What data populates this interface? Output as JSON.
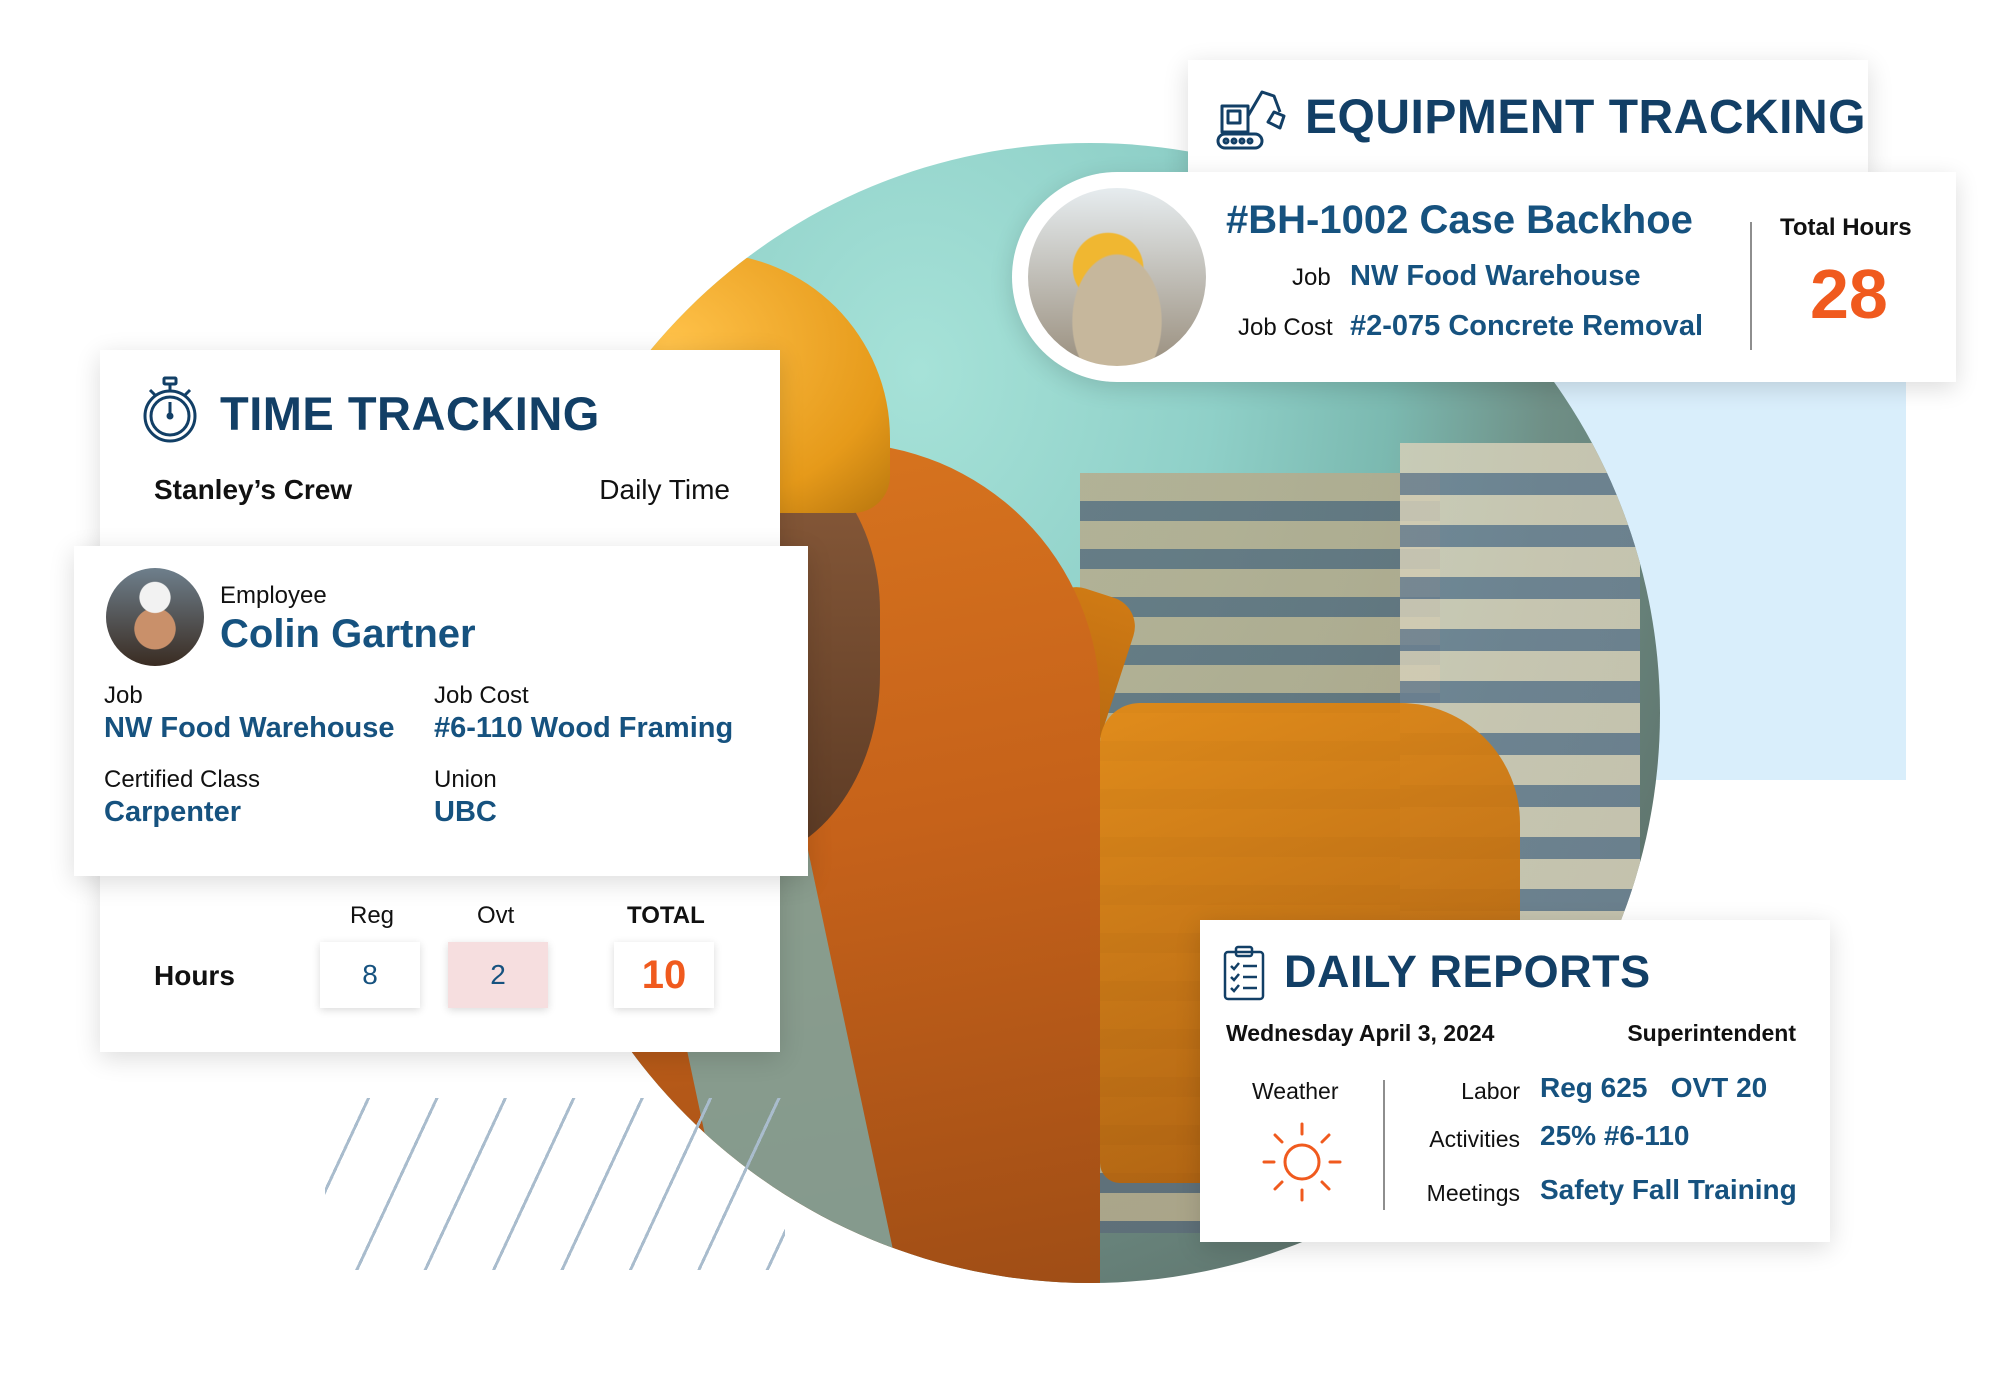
{
  "colors": {
    "heading": "#123f66",
    "value": "#16527f",
    "accent": "#f05a1e",
    "overtime_bg": "#f6dedf"
  },
  "time_tracking": {
    "title": "TIME TRACKING",
    "icon": "stopwatch-icon",
    "crew": "Stanley’s Crew",
    "mode": "Daily Time",
    "employee": {
      "label": "Employee",
      "name": "Colin Gartner",
      "job_label": "Job",
      "job": "NW Food Warehouse",
      "job_cost_label": "Job Cost",
      "job_cost": "#6-110 Wood Framing",
      "class_label": "Certified Class",
      "class": "Carpenter",
      "union_label": "Union",
      "union": "UBC"
    },
    "hours": {
      "label": "Hours",
      "reg_label": "Reg",
      "ovt_label": "Ovt",
      "total_label": "TOTAL",
      "reg": "8",
      "ovt": "2",
      "total": "10"
    }
  },
  "equipment_tracking": {
    "title": "EQUIPMENT TRACKING",
    "icon": "excavator-icon",
    "name": "#BH-1002 Case Backhoe",
    "job_label": "Job",
    "job": "NW Food Warehouse",
    "job_cost_label": "Job Cost",
    "job_cost": "#2-075 Concrete Removal",
    "total_hours_label": "Total Hours",
    "total_hours": "28"
  },
  "daily_reports": {
    "title": "DAILY REPORTS",
    "icon": "clipboard-checklist-icon",
    "date": "Wednesday April 3, 2024",
    "role": "Superintendent",
    "weather_label": "Weather",
    "weather_icon": "sun-icon",
    "labor_label": "Labor",
    "labor": "Reg 625   OVT 20",
    "activities_label": "Activities",
    "activities": "25% #6-110",
    "meetings_label": "Meetings",
    "meetings": "Safety Fall Training"
  }
}
